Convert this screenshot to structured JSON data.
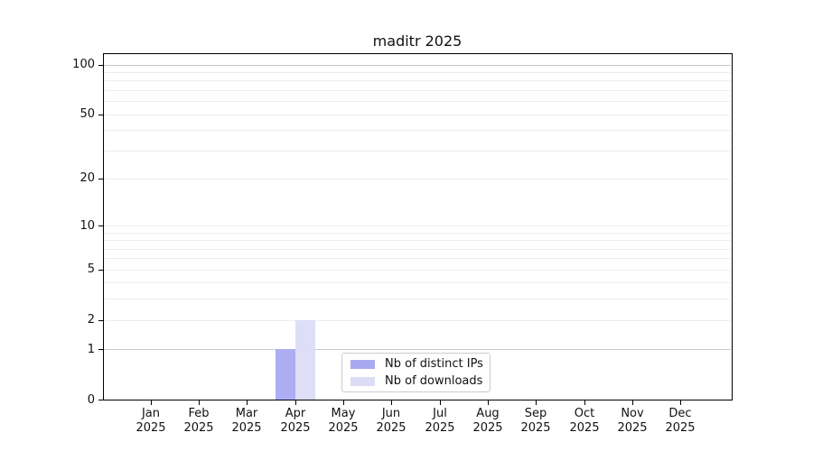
{
  "chart_data": {
    "type": "bar",
    "title": "maditr 2025",
    "scale": "log1p",
    "xlabel": "",
    "ylabel": "",
    "categories": [
      {
        "month": "Jan",
        "year": "2025"
      },
      {
        "month": "Feb",
        "year": "2025"
      },
      {
        "month": "Mar",
        "year": "2025"
      },
      {
        "month": "Apr",
        "year": "2025"
      },
      {
        "month": "May",
        "year": "2025"
      },
      {
        "month": "Jun",
        "year": "2025"
      },
      {
        "month": "Jul",
        "year": "2025"
      },
      {
        "month": "Aug",
        "year": "2025"
      },
      {
        "month": "Sep",
        "year": "2025"
      },
      {
        "month": "Oct",
        "year": "2025"
      },
      {
        "month": "Nov",
        "year": "2025"
      },
      {
        "month": "Dec",
        "year": "2025"
      }
    ],
    "series": [
      {
        "name": "Nb of distinct IPs",
        "color": "#a9a9f2",
        "values": [
          0,
          0,
          0,
          1,
          0,
          0,
          0,
          0,
          0,
          0,
          0,
          0
        ]
      },
      {
        "name": "Nb of downloads",
        "color": "#dcdcf7",
        "values": [
          0,
          0,
          0,
          2,
          0,
          0,
          0,
          0,
          0,
          0,
          0,
          0
        ]
      }
    ],
    "y_ticks": [
      0,
      1,
      2,
      5,
      10,
      20,
      50,
      100
    ],
    "gridline_values": [
      1,
      2,
      3,
      4,
      5,
      6,
      7,
      8,
      9,
      10,
      20,
      30,
      40,
      50,
      60,
      70,
      80,
      90,
      100
    ],
    "gridline_major_values": [
      1,
      100
    ],
    "gridline_minor_color": "#ededed",
    "gridline_major_color": "#c9c9c9",
    "legend_position": "lower-center-inside",
    "grid": true
  }
}
